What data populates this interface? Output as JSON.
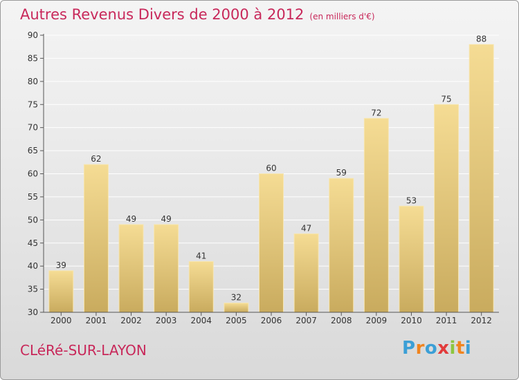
{
  "chart_data": {
    "type": "bar",
    "title": "Autres Revenus Divers de 2000 à 2012",
    "subtitle": "(en milliers d'€)",
    "categories": [
      "2000",
      "2001",
      "2002",
      "2003",
      "2004",
      "2005",
      "2006",
      "2007",
      "2008",
      "2009",
      "2010",
      "2011",
      "2012"
    ],
    "values": [
      39,
      62,
      49,
      49,
      41,
      32,
      60,
      47,
      59,
      72,
      53,
      75,
      88
    ],
    "ylim": [
      30,
      90
    ],
    "yticks": [
      30,
      35,
      40,
      45,
      50,
      55,
      60,
      65,
      70,
      75,
      80,
      85,
      90
    ],
    "grid": true,
    "bar_color": "#e8c97c",
    "title_color": "#c8285a"
  },
  "footer": {
    "city": "CLéRé-SUR-LAYON",
    "logo_letters": [
      "P",
      "r",
      "o",
      "x",
      "i",
      "t",
      "i"
    ],
    "logo_colors": [
      "#3b9fd6",
      "#f0841e",
      "#3b9fd6",
      "#e23b3b",
      "#8dc63f",
      "#f0841e",
      "#3b9fd6"
    ]
  }
}
